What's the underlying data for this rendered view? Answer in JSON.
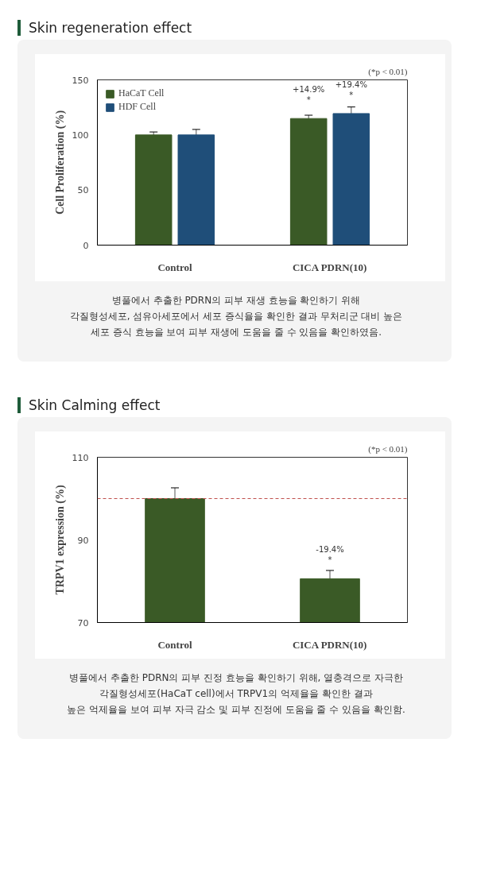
{
  "chart_data": [
    {
      "type": "bar",
      "title": "Skin regeneration effect",
      "ylabel": "Cell Proliferation (%)",
      "categories": [
        "Control",
        "CICA PDRN(10)"
      ],
      "series": [
        {
          "name": "HaCaT Cell",
          "color": "#3a5a26",
          "values": [
            100,
            114.9
          ],
          "errors": [
            2.7,
            3
          ]
        },
        {
          "name": "HDF Cell",
          "color": "#1f4e79",
          "values": [
            100,
            119.4
          ],
          "errors": [
            5,
            6
          ]
        }
      ],
      "ylim": [
        0,
        150
      ],
      "yticks": [
        0,
        50,
        100,
        150
      ],
      "grid": false,
      "legend": "top left",
      "annotations": [
        {
          "text": "+14.9%\n*",
          "x": "CICA PDRN(10)",
          "y": 114.9
        },
        {
          "text": "+19.4%\n*",
          "x": "CICA PDRN(10)",
          "y": 119.4
        },
        "(*p < 0.01)",
        "병풀에서 추출한 PDRN의 피부 재생 효능을 확인하기 위해\n각질형성세포, 섬유아세포에서 세포 증식율을 확인한 결과 무처리군 대비 높은\n세포 증식 효능을 보여 피부 재생에 도움을 줄 수 있음을 확인하였음."
      ]
    },
    {
      "type": "bar",
      "title": "Skin Calming effect",
      "ylabel": "TRPV1 expression (%)",
      "categories": [
        "Control",
        "CICA PDRN(10)"
      ],
      "series": [
        {
          "color": "#3a5a26",
          "values": [
            100,
            80.6
          ],
          "errors": [
            2.6,
            2
          ]
        }
      ],
      "ylim": [
        70,
        110
      ],
      "yticks": [
        70,
        90,
        110
      ],
      "grid": false,
      "ref_lines": [
        {
          "axis": "y",
          "value": 100,
          "color": "#c0504d",
          "line_style": "dashed"
        }
      ],
      "annotations": [
        {
          "text": "-19.4%\n*",
          "x": "CICA PDRN(10)",
          "y": 80.6
        },
        "(*p < 0.01)",
        "병풀에서 추출한 PDRN의 피부 진정 효능을 확인하기 위해, 열충격으로 자극한\n각질형성세포(HaCaT cell)에서 TRPV1의 억제율을 확인한 결과\n높은 억제율을 보여 피부 자극 감소 및 피부 진정에 도움을 줄 수 있음을 확인함."
      ]
    }
  ]
}
